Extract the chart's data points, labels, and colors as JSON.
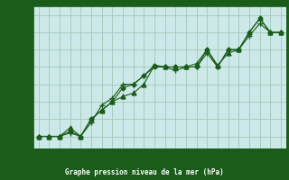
{
  "title": "Graphe pression niveau de la mer (hPa)",
  "bg_color": "#cce8e8",
  "plot_bg_color": "#cce8e8",
  "label_bg_color": "#1a5c1a",
  "label_text_color": "#ffffff",
  "grid_color": "#a0c8b8",
  "line_color": "#1a5c1a",
  "marker_color": "#1a5c1a",
  "xlim": [
    -0.5,
    23.5
  ],
  "ylim": [
    1004.3,
    1012.5
  ],
  "yticks": [
    1005,
    1006,
    1007,
    1008,
    1009,
    1010,
    1011,
    1012
  ],
  "xticks": [
    0,
    1,
    2,
    3,
    4,
    5,
    6,
    7,
    8,
    9,
    10,
    11,
    12,
    13,
    14,
    15,
    16,
    17,
    18,
    19,
    20,
    21,
    22,
    23
  ],
  "series": [
    [
      1005.0,
      1005.0,
      1005.0,
      1005.3,
      1005.0,
      1006.0,
      1006.5,
      1007.0,
      1007.8,
      1008.0,
      1008.5,
      1009.1,
      1009.0,
      1009.0,
      1009.0,
      1009.0,
      1010.0,
      1009.0,
      1010.0,
      1010.0,
      1011.0,
      1011.8,
      1011.0,
      1011.0
    ],
    [
      1005.0,
      1005.0,
      1005.0,
      1005.5,
      1005.0,
      1006.0,
      1006.5,
      1007.0,
      1007.3,
      1007.5,
      1008.0,
      1009.1,
      1009.0,
      1009.0,
      1009.0,
      1009.2,
      1010.0,
      1009.1,
      1009.8,
      1010.0,
      1011.0,
      1011.8,
      1011.0,
      1011.0
    ],
    [
      1005.0,
      1005.0,
      1005.0,
      1005.2,
      1005.0,
      1005.8,
      1006.8,
      1007.2,
      1008.0,
      1008.0,
      1008.5,
      1009.0,
      1009.0,
      1008.8,
      1009.0,
      1009.0,
      1009.8,
      1009.0,
      1010.0,
      1010.0,
      1010.8,
      1011.5,
      1011.0,
      1011.0
    ]
  ],
  "marker_styles": [
    "D",
    "^",
    "+"
  ],
  "marker_sizes": [
    2.5,
    3.5,
    5
  ],
  "linewidths": [
    0.8,
    0.8,
    0.8
  ]
}
